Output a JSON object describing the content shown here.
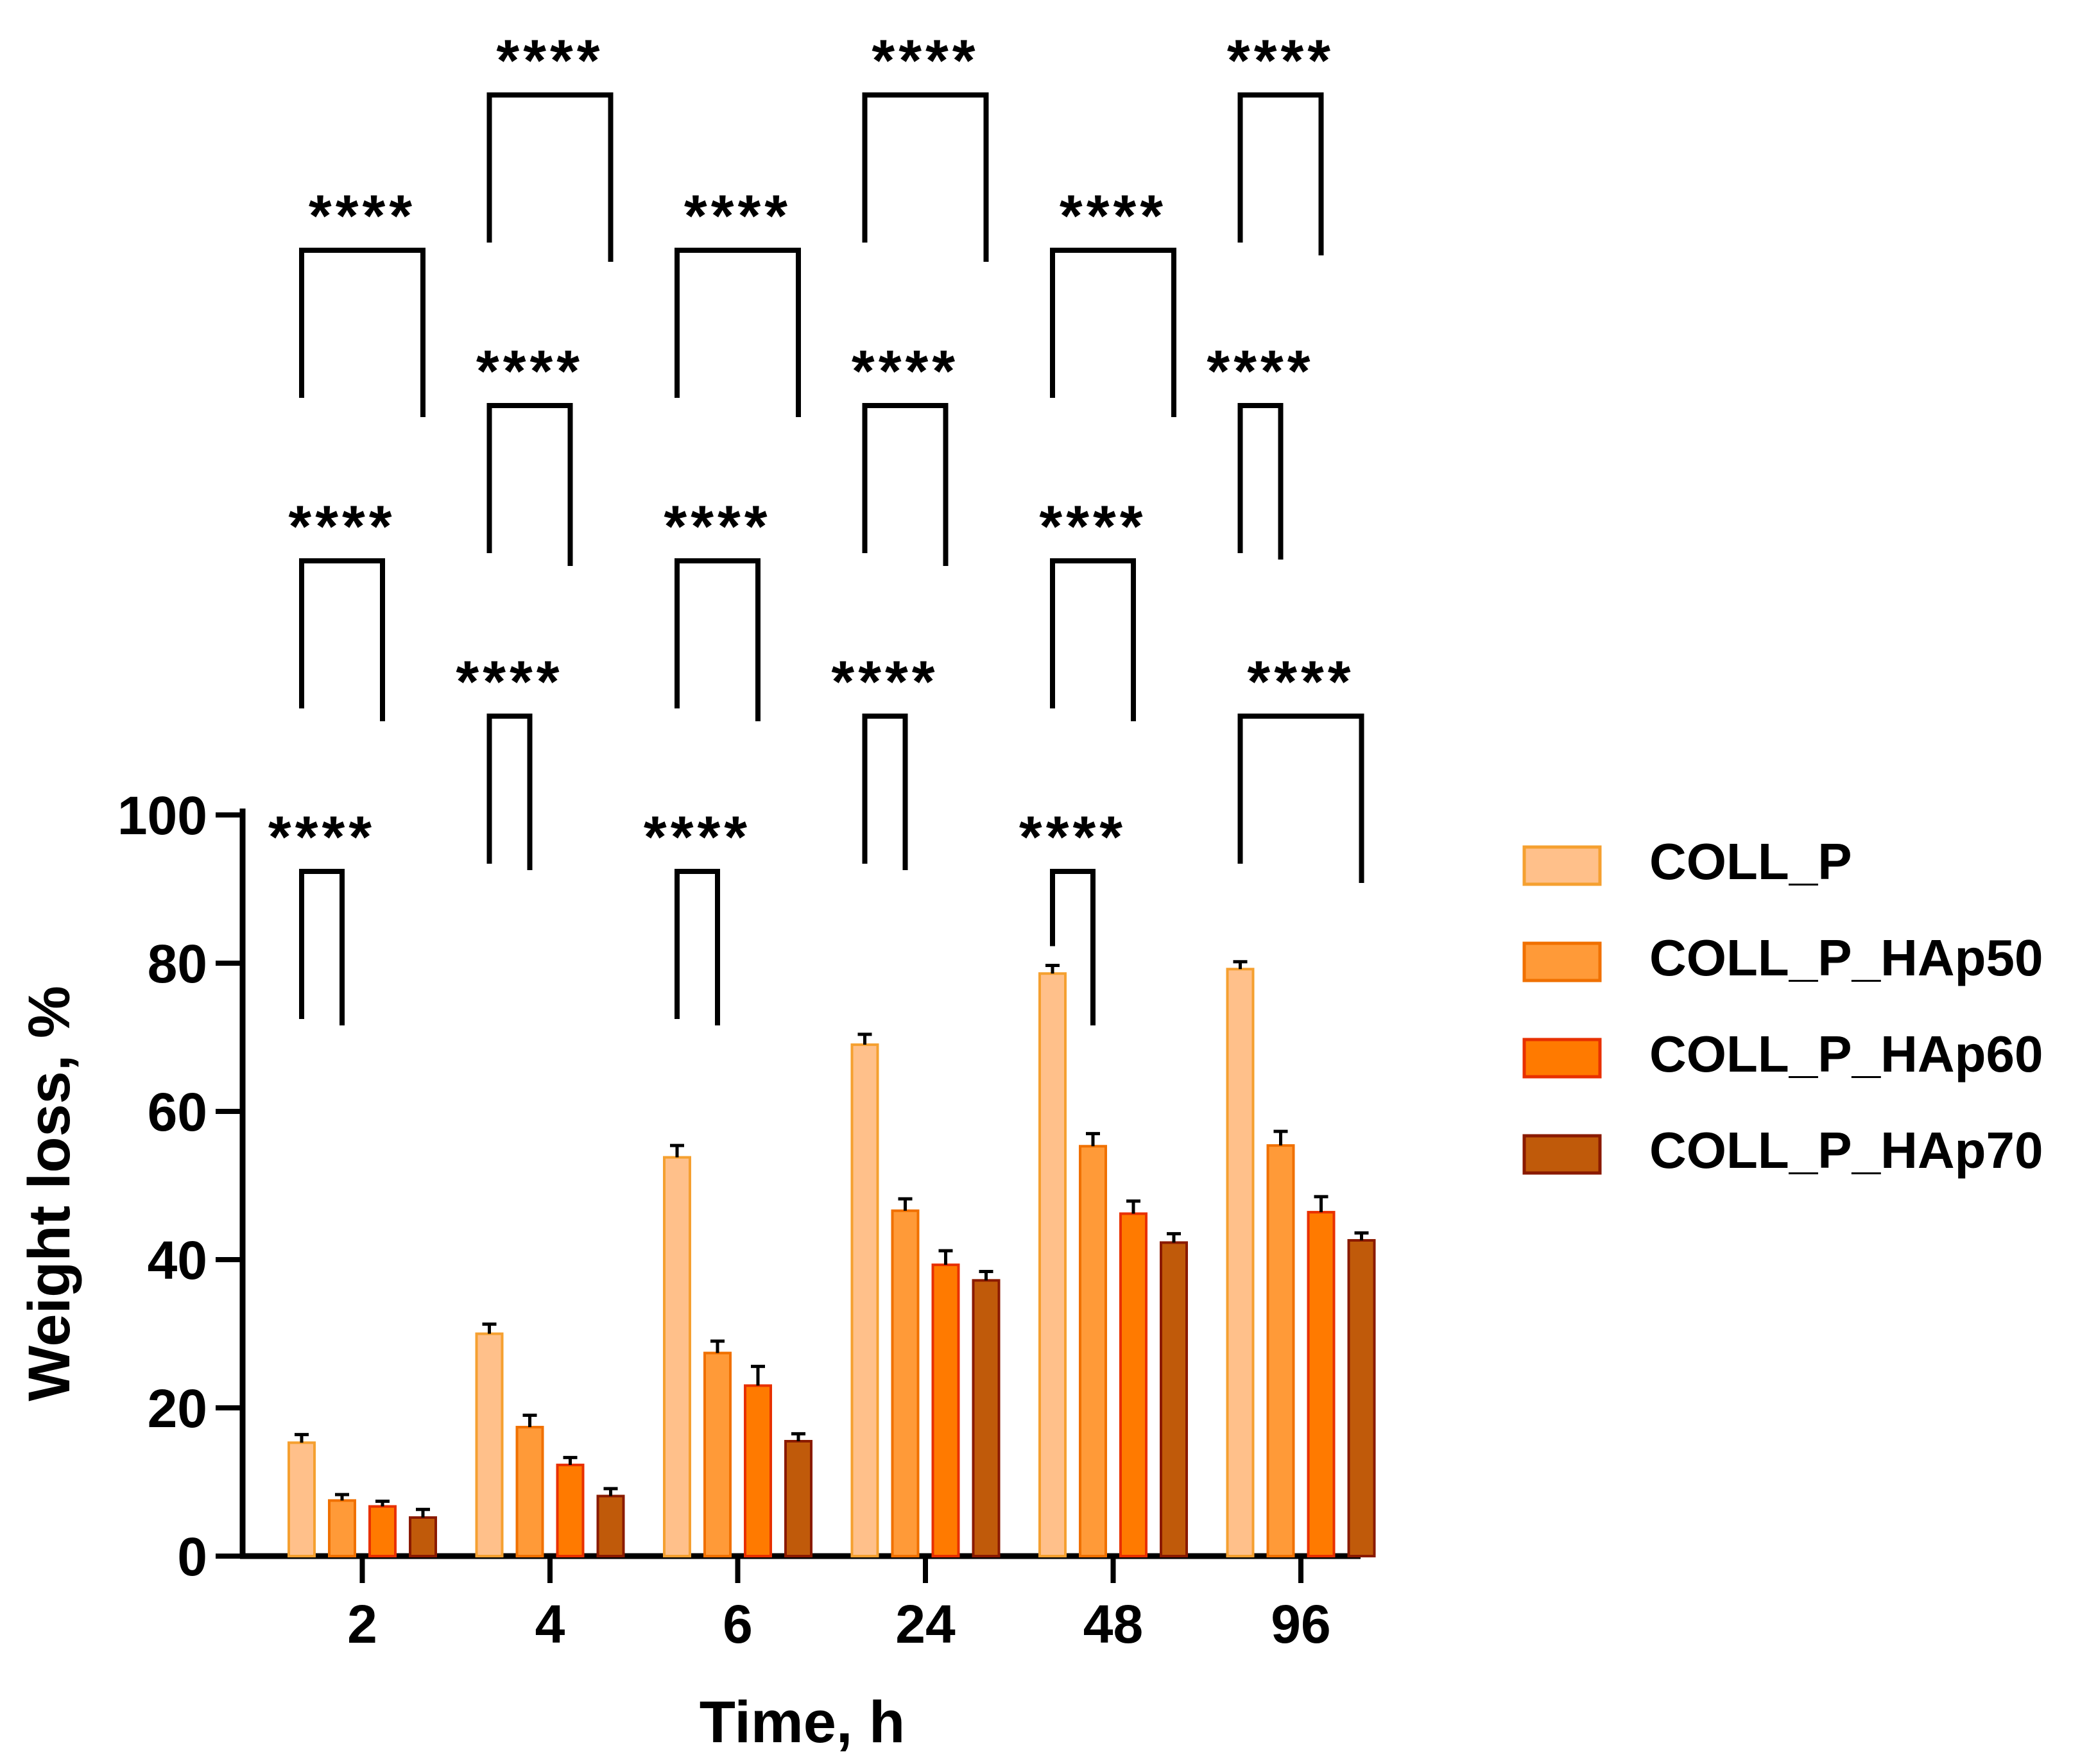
{
  "chart_data": {
    "type": "bar",
    "title": "",
    "xlabel": "Time, h",
    "ylabel": "Weight loss, %",
    "ylim": [
      0,
      100
    ],
    "yticks": [
      0,
      20,
      40,
      60,
      80,
      100
    ],
    "categories": [
      "2",
      "4",
      "6",
      "24",
      "48",
      "96"
    ],
    "series": [
      {
        "name": "COLL_P",
        "color": "#FFC08A",
        "edge": "#F5A030",
        "values": [
          15.3,
          30.0,
          53.8,
          69.0,
          78.6,
          79.2
        ],
        "errors": [
          1.1,
          1.3,
          1.6,
          1.4,
          1.1,
          1.0
        ]
      },
      {
        "name": "COLL_P_HAp50",
        "color": "#FF9A38",
        "edge": "#F07000",
        "values": [
          7.5,
          17.4,
          27.4,
          46.6,
          55.3,
          55.4
        ],
        "errors": [
          0.8,
          1.6,
          1.6,
          1.6,
          1.7,
          1.9
        ]
      },
      {
        "name": "COLL_P_HAp60",
        "color": "#FF7A00",
        "edge": "#E83000",
        "values": [
          6.7,
          12.3,
          23.0,
          39.3,
          46.2,
          46.4
        ],
        "errors": [
          0.7,
          1.0,
          2.6,
          1.9,
          1.7,
          2.1
        ]
      },
      {
        "name": "COLL_P_HAp70",
        "color": "#C05A0A",
        "edge": "#8A1A00",
        "values": [
          5.2,
          8.1,
          15.5,
          37.2,
          42.3,
          42.6
        ],
        "errors": [
          1.1,
          1.0,
          1.0,
          1.2,
          1.2,
          1.0
        ]
      }
    ],
    "legend_position": "right",
    "grid": false,
    "annotations": [
      {
        "label": "****",
        "group": 0,
        "from": 0,
        "to": 1
      },
      {
        "label": "****",
        "group": 0,
        "from": 0,
        "to": 2
      },
      {
        "label": "****",
        "group": 0,
        "from": 0,
        "to": 3
      },
      {
        "label": "****",
        "group": 1,
        "from": 0,
        "to": 1
      },
      {
        "label": "****",
        "group": 1,
        "from": 0,
        "to": 2
      },
      {
        "label": "****",
        "group": 1,
        "from": 0,
        "to": 3
      },
      {
        "label": "****",
        "group": 2,
        "from": 0,
        "to": 1
      },
      {
        "label": "****",
        "group": 2,
        "from": 0,
        "to": 2
      },
      {
        "label": "****",
        "group": 2,
        "from": 0,
        "to": 3
      },
      {
        "label": "****",
        "group": 3,
        "from": 0,
        "to": 1
      },
      {
        "label": "****",
        "group": 3,
        "from": 0,
        "to": 2
      },
      {
        "label": "****",
        "group": 3,
        "from": 0,
        "to": 3
      },
      {
        "label": "****",
        "group": 4,
        "from": 0,
        "to": 1
      },
      {
        "label": "****",
        "group": 4,
        "from": 0,
        "to": 2
      },
      {
        "label": "****",
        "group": 4,
        "from": 0,
        "to": 3
      },
      {
        "label": "****",
        "group": 5,
        "from": 0,
        "to": 3
      },
      {
        "label": "****",
        "group": 5,
        "from": 0,
        "to": 1
      },
      {
        "label": "****",
        "group": 5,
        "from": 0,
        "to": 2
      }
    ]
  }
}
